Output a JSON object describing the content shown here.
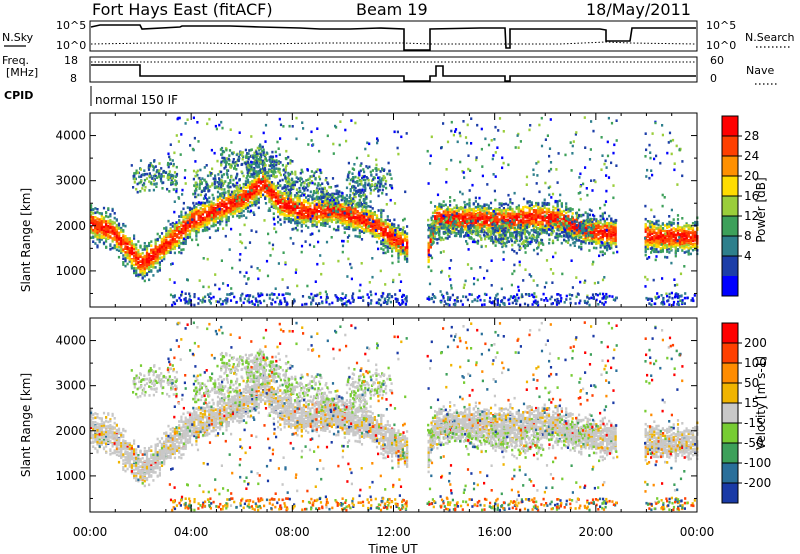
{
  "header": {
    "station": "Fort Hays East (fitACF)",
    "beam": "Beam 19",
    "date": "18/May/2011"
  },
  "param_panels": {
    "noise": {
      "left_label": "N.Sky",
      "right_label": "N.Search",
      "left_ticks": [
        "10^5",
        "10^0"
      ],
      "right_ticks": [
        "10^5",
        "10^0"
      ]
    },
    "freq": {
      "left_label_top": "Freq.",
      "left_label_bottom": "[MHz]",
      "right_label": "Nave",
      "left_ticks": [
        "18",
        "8"
      ],
      "right_ticks": [
        "60",
        "0"
      ]
    },
    "cpid": {
      "label": "CPID",
      "value": "normal 150 IF"
    }
  },
  "colorbars": {
    "power": {
      "title": "Power [dB]",
      "labels": [
        "28",
        "24",
        "20",
        "16",
        "12",
        "8",
        "4"
      ],
      "colors": [
        "#0000ff",
        "#1c3ea8",
        "#2e7f8c",
        "#3da05a",
        "#9ace3a",
        "#ffdc00",
        "#ff9000",
        "#ff4000",
        "#ff0000"
      ]
    },
    "velocity": {
      "title": "Velocity [m s-1]",
      "labels": [
        "200",
        "100",
        "50",
        "15",
        "-15",
        "-50",
        "-100",
        "-200"
      ],
      "colors": [
        "#1a3aa6",
        "#2a6f9a",
        "#3da05a",
        "#77cc33",
        "#c8c8c8",
        "#f0b400",
        "#ff8c00",
        "#ff4000",
        "#ff0000"
      ]
    }
  },
  "chart_data": [
    {
      "type": "heatmap",
      "name": "power",
      "ylabel": "Slant Range [km]",
      "yticks": [
        "1000",
        "2000",
        "3000",
        "4000"
      ],
      "ylim": [
        200,
        4500
      ],
      "xlim": [
        0,
        24
      ],
      "xticks": [
        "00:00",
        "04:00",
        "08:00",
        "12:00",
        "16:00",
        "20:00",
        "00:00"
      ],
      "data_gaps_hours": [
        [
          12.5,
          13.3
        ],
        [
          20.8,
          21.9
        ]
      ],
      "band_center_km": [
        [
          0.0,
          2050
        ],
        [
          0.8,
          1900
        ],
        [
          1.5,
          1500
        ],
        [
          2.0,
          1150
        ],
        [
          2.5,
          1350
        ],
        [
          3.3,
          1750
        ],
        [
          4.0,
          2100
        ],
        [
          5.0,
          2350
        ],
        [
          6.0,
          2600
        ],
        [
          6.8,
          2950
        ],
        [
          7.5,
          2500
        ],
        [
          8.5,
          2300
        ],
        [
          9.5,
          2350
        ],
        [
          10.5,
          2200
        ],
        [
          11.3,
          2000
        ],
        [
          12.0,
          1700
        ],
        [
          12.5,
          1550
        ],
        [
          13.3,
          1300
        ],
        [
          13.6,
          2150
        ],
        [
          15.0,
          2150
        ],
        [
          16.5,
          2100
        ],
        [
          17.5,
          2200
        ],
        [
          18.5,
          2150
        ],
        [
          19.5,
          1900
        ],
        [
          20.8,
          1800
        ],
        [
          21.9,
          1800
        ],
        [
          22.5,
          1750
        ],
        [
          23.5,
          1750
        ],
        [
          24.0,
          1750
        ]
      ]
    },
    {
      "type": "heatmap",
      "name": "velocity",
      "ylabel": "Slant Range [km]",
      "yticks": [
        "1000",
        "2000",
        "3000",
        "4000"
      ],
      "ylim": [
        200,
        4500
      ],
      "xlim": [
        0,
        24
      ],
      "xticks": [
        "00:00",
        "04:00",
        "08:00",
        "12:00",
        "16:00",
        "20:00",
        "00:00"
      ],
      "xlabel": "Time UT",
      "data_gaps_hours": [
        [
          12.5,
          13.3
        ],
        [
          20.8,
          21.9
        ]
      ]
    }
  ]
}
